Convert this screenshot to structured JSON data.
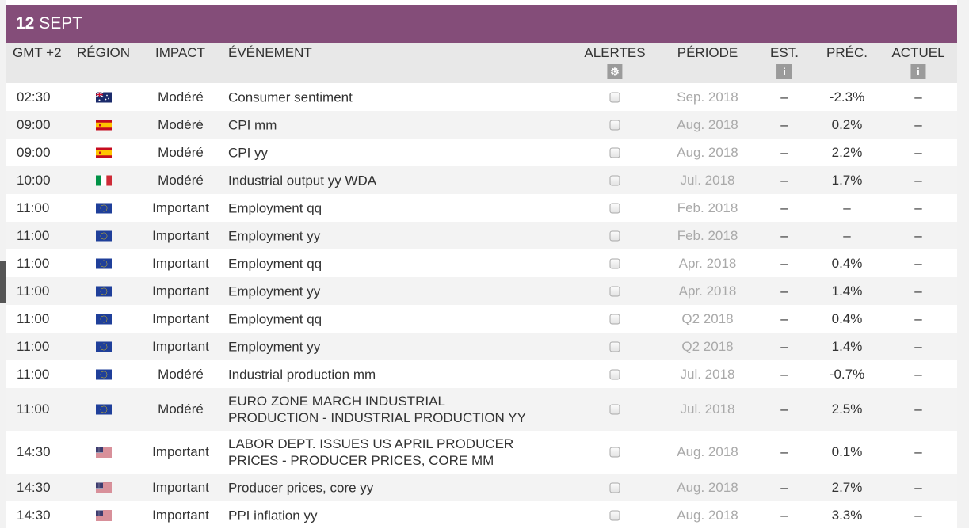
{
  "date_bar": {
    "day": "12",
    "month": "SEPT"
  },
  "columns": {
    "time": "GMT +2",
    "region": "RÉGION",
    "impact": "IMPACT",
    "event": "ÉVÉNEMENT",
    "alerts": "ALERTES",
    "period": "PÉRIODE",
    "est": "EST.",
    "prev": "PRÉC.",
    "actual": "ACTUEL"
  },
  "column_icons": {
    "alerts": "gear-icon",
    "est": "info-icon",
    "actual": "info-icon"
  },
  "flag_colors": {
    "au": [
      "#1b2b6b",
      "#c8102e",
      "#ffffff"
    ],
    "es": [
      "#c60b1e",
      "#ffc400"
    ],
    "it": [
      "#009246",
      "#ffffff",
      "#ce2b37"
    ],
    "eu": [
      "#1f3f9a",
      "#ffd700"
    ],
    "us": [
      "#b22234",
      "#ffffff",
      "#3c3b6e"
    ]
  },
  "rows": [
    {
      "time": "02:30",
      "flag": "au",
      "impact": "Modéré",
      "event": [
        "Consumer sentiment"
      ],
      "period": "Sep. 2018",
      "est": "–",
      "prev": "-2.3%",
      "actual": "–"
    },
    {
      "time": "09:00",
      "flag": "es",
      "impact": "Modéré",
      "event": [
        "CPI mm"
      ],
      "period": "Aug. 2018",
      "est": "–",
      "prev": "0.2%",
      "actual": "–"
    },
    {
      "time": "09:00",
      "flag": "es",
      "impact": "Modéré",
      "event": [
        "CPI yy"
      ],
      "period": "Aug. 2018",
      "est": "–",
      "prev": "2.2%",
      "actual": "–"
    },
    {
      "time": "10:00",
      "flag": "it",
      "impact": "Modéré",
      "event": [
        "Industrial output yy WDA"
      ],
      "period": "Jul. 2018",
      "est": "–",
      "prev": "1.7%",
      "actual": "–"
    },
    {
      "time": "11:00",
      "flag": "eu",
      "impact": "Important",
      "event": [
        "Employment qq"
      ],
      "period": "Feb. 2018",
      "est": "–",
      "prev": "–",
      "actual": "–"
    },
    {
      "time": "11:00",
      "flag": "eu",
      "impact": "Important",
      "event": [
        "Employment yy"
      ],
      "period": "Feb. 2018",
      "est": "–",
      "prev": "–",
      "actual": "–"
    },
    {
      "time": "11:00",
      "flag": "eu",
      "impact": "Important",
      "event": [
        "Employment qq"
      ],
      "period": "Apr. 2018",
      "est": "–",
      "prev": "0.4%",
      "actual": "–"
    },
    {
      "time": "11:00",
      "flag": "eu",
      "impact": "Important",
      "event": [
        "Employment yy"
      ],
      "period": "Apr. 2018",
      "est": "–",
      "prev": "1.4%",
      "actual": "–"
    },
    {
      "time": "11:00",
      "flag": "eu",
      "impact": "Important",
      "event": [
        "Employment qq"
      ],
      "period": "Q2 2018",
      "est": "–",
      "prev": "0.4%",
      "actual": "–"
    },
    {
      "time": "11:00",
      "flag": "eu",
      "impact": "Important",
      "event": [
        "Employment yy"
      ],
      "period": "Q2 2018",
      "est": "–",
      "prev": "1.4%",
      "actual": "–"
    },
    {
      "time": "11:00",
      "flag": "eu",
      "impact": "Modéré",
      "event": [
        "Industrial production mm"
      ],
      "period": "Jul. 2018",
      "est": "–",
      "prev": "-0.7%",
      "actual": "–"
    },
    {
      "time": "11:00",
      "flag": "eu",
      "impact": "Modéré",
      "event": [
        "EURO ZONE MARCH INDUSTRIAL",
        "PRODUCTION - INDUSTRIAL PRODUCTION YY"
      ],
      "period": "Jul. 2018",
      "est": "–",
      "prev": "2.5%",
      "actual": "–"
    },
    {
      "time": "14:30",
      "flag": "us",
      "impact": "Important",
      "event": [
        "LABOR DEPT. ISSUES US APRIL PRODUCER",
        "PRICES - PRODUCER PRICES, CORE MM"
      ],
      "period": "Aug. 2018",
      "est": "–",
      "prev": "0.1%",
      "actual": "–"
    },
    {
      "time": "14:30",
      "flag": "us",
      "impact": "Important",
      "event": [
        "Producer prices, core yy"
      ],
      "period": "Aug. 2018",
      "est": "–",
      "prev": "2.7%",
      "actual": "–"
    },
    {
      "time": "14:30",
      "flag": "us",
      "impact": "Important",
      "event": [
        "PPI inflation yy"
      ],
      "period": "Aug. 2018",
      "est": "–",
      "prev": "3.3%",
      "actual": "–"
    }
  ]
}
